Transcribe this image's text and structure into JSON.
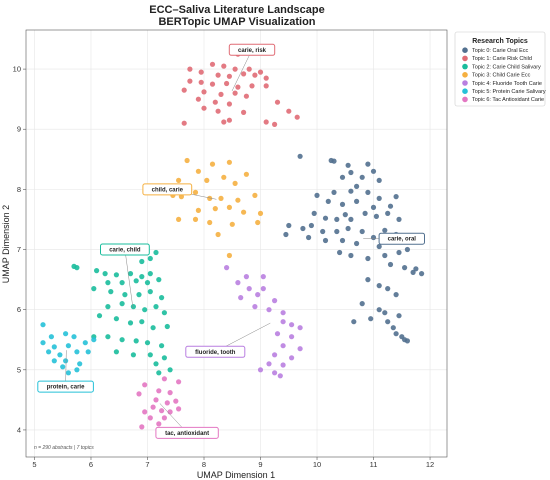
{
  "chart_data": {
    "type": "scatter",
    "title": [
      "ECC–Saliva Literature Landscape",
      "BERTopic UMAP Visualization"
    ],
    "xlabel": "UMAP Dimension 1",
    "ylabel": "UMAP Dimension 2",
    "xlim": [
      4.85,
      12.3
    ],
    "ylim": [
      3.55,
      10.65
    ],
    "xticks": [
      5,
      6,
      7,
      8,
      9,
      10,
      11,
      12
    ],
    "yticks": [
      4,
      5,
      6,
      7,
      8,
      9,
      10
    ],
    "grid": true,
    "legend": {
      "title": "Research Topics",
      "placement": "top-right"
    },
    "footnote": "n = 290 abstracts | 7 topics",
    "series": [
      {
        "name": "Topic 0: Carie Oral Ecc",
        "color": "#52708f",
        "annotation": {
          "label": "carie, oral",
          "x": 11.5,
          "y": 7.18
        },
        "points": [
          [
            9.7,
            8.55
          ],
          [
            10.3,
            8.47
          ],
          [
            10.25,
            8.48
          ],
          [
            10.55,
            8.4
          ],
          [
            10.9,
            8.42
          ],
          [
            11.0,
            8.3
          ],
          [
            10.6,
            8.28
          ],
          [
            10.8,
            8.2
          ],
          [
            11.1,
            8.15
          ],
          [
            10.45,
            8.2
          ],
          [
            10.7,
            8.05
          ],
          [
            10.0,
            7.9
          ],
          [
            10.3,
            7.95
          ],
          [
            10.6,
            7.97
          ],
          [
            10.9,
            7.95
          ],
          [
            11.1,
            7.85
          ],
          [
            11.4,
            7.88
          ],
          [
            10.2,
            7.8
          ],
          [
            10.45,
            7.75
          ],
          [
            10.7,
            7.8
          ],
          [
            11.0,
            7.7
          ],
          [
            11.3,
            7.72
          ],
          [
            9.95,
            7.6
          ],
          [
            10.15,
            7.52
          ],
          [
            10.35,
            7.5
          ],
          [
            10.5,
            7.58
          ],
          [
            10.6,
            7.5
          ],
          [
            10.85,
            7.6
          ],
          [
            11.05,
            7.55
          ],
          [
            11.25,
            7.6
          ],
          [
            11.45,
            7.5
          ],
          [
            9.5,
            7.4
          ],
          [
            9.75,
            7.35
          ],
          [
            9.9,
            7.4
          ],
          [
            10.1,
            7.3
          ],
          [
            10.35,
            7.3
          ],
          [
            10.55,
            7.35
          ],
          [
            10.8,
            7.3
          ],
          [
            11.0,
            7.2
          ],
          [
            11.2,
            7.32
          ],
          [
            11.4,
            7.25
          ],
          [
            9.45,
            7.25
          ],
          [
            9.85,
            7.2
          ],
          [
            10.15,
            7.15
          ],
          [
            10.45,
            7.15
          ],
          [
            10.7,
            7.1
          ],
          [
            11.1,
            7.05
          ],
          [
            10.4,
            6.95
          ],
          [
            10.6,
            6.9
          ],
          [
            10.9,
            6.85
          ],
          [
            11.2,
            6.9
          ],
          [
            11.45,
            6.95
          ],
          [
            11.6,
            7.0
          ],
          [
            11.3,
            6.75
          ],
          [
            11.55,
            6.7
          ],
          [
            11.75,
            6.68
          ],
          [
            11.85,
            6.6
          ],
          [
            11.7,
            6.62
          ],
          [
            10.9,
            6.5
          ],
          [
            11.1,
            6.4
          ],
          [
            11.25,
            6.35
          ],
          [
            11.4,
            6.25
          ],
          [
            10.8,
            6.1
          ],
          [
            11.1,
            6.0
          ],
          [
            11.2,
            5.95
          ],
          [
            11.45,
            5.9
          ],
          [
            10.95,
            5.85
          ],
          [
            11.25,
            5.8
          ],
          [
            11.35,
            5.7
          ],
          [
            10.65,
            5.8
          ],
          [
            11.4,
            5.6
          ],
          [
            11.5,
            5.55
          ],
          [
            11.55,
            5.5
          ],
          [
            11.6,
            5.48
          ]
        ]
      },
      {
        "name": "Topic 1: Carie Risk Child",
        "color": "#e06c75",
        "annotation": {
          "label": "carie, risk",
          "x": 8.85,
          "y": 10.32
        },
        "points": [
          [
            8.6,
            10.25
          ],
          [
            8.15,
            10.08
          ],
          [
            8.35,
            10.05
          ],
          [
            8.55,
            10.0
          ],
          [
            8.8,
            10.0
          ],
          [
            9.0,
            9.95
          ],
          [
            7.75,
            10.0
          ],
          [
            7.95,
            9.95
          ],
          [
            8.25,
            9.9
          ],
          [
            8.45,
            9.88
          ],
          [
            8.7,
            9.92
          ],
          [
            8.9,
            9.9
          ],
          [
            9.1,
            9.85
          ],
          [
            7.75,
            9.8
          ],
          [
            7.95,
            9.78
          ],
          [
            8.15,
            9.75
          ],
          [
            8.4,
            9.76
          ],
          [
            8.6,
            9.7
          ],
          [
            8.85,
            9.72
          ],
          [
            9.1,
            9.72
          ],
          [
            7.65,
            9.65
          ],
          [
            8.0,
            9.62
          ],
          [
            8.3,
            9.58
          ],
          [
            8.55,
            9.6
          ],
          [
            8.75,
            9.55
          ],
          [
            7.9,
            9.5
          ],
          [
            8.2,
            9.45
          ],
          [
            8.45,
            9.42
          ],
          [
            9.3,
            9.45
          ],
          [
            8.0,
            9.35
          ],
          [
            8.25,
            9.3
          ],
          [
            8.7,
            9.28
          ],
          [
            9.5,
            9.3
          ],
          [
            9.65,
            9.2
          ],
          [
            7.65,
            9.1
          ],
          [
            8.35,
            9.12
          ],
          [
            8.45,
            9.15
          ],
          [
            9.1,
            9.12
          ],
          [
            9.25,
            9.08
          ]
        ]
      },
      {
        "name": "Topic 2: Carie Child Salivary",
        "color": "#1abc9c",
        "annotation": {
          "label": "carie, child",
          "x": 6.6,
          "y": 7.0
        },
        "points": [
          [
            7.15,
            6.95
          ],
          [
            7.05,
            6.85
          ],
          [
            6.9,
            6.8
          ],
          [
            5.75,
            6.7
          ],
          [
            5.7,
            6.72
          ],
          [
            6.1,
            6.65
          ],
          [
            6.25,
            6.6
          ],
          [
            6.45,
            6.58
          ],
          [
            6.7,
            6.6
          ],
          [
            6.9,
            6.55
          ],
          [
            7.05,
            6.6
          ],
          [
            6.3,
            6.45
          ],
          [
            6.55,
            6.45
          ],
          [
            6.8,
            6.48
          ],
          [
            7.0,
            6.45
          ],
          [
            7.2,
            6.5
          ],
          [
            6.05,
            6.35
          ],
          [
            6.35,
            6.3
          ],
          [
            6.6,
            6.25
          ],
          [
            6.85,
            6.25
          ],
          [
            7.05,
            6.3
          ],
          [
            7.25,
            6.2
          ],
          [
            6.3,
            6.05
          ],
          [
            6.55,
            6.1
          ],
          [
            6.75,
            6.05
          ],
          [
            6.95,
            6.0
          ],
          [
            7.15,
            6.05
          ],
          [
            7.3,
            5.95
          ],
          [
            6.15,
            5.9
          ],
          [
            6.45,
            5.85
          ],
          [
            6.7,
            5.78
          ],
          [
            6.9,
            5.8
          ],
          [
            7.1,
            5.7
          ],
          [
            7.35,
            5.72
          ],
          [
            6.05,
            5.55
          ],
          [
            6.3,
            5.55
          ],
          [
            6.55,
            5.5
          ],
          [
            6.8,
            5.48
          ],
          [
            7.0,
            5.45
          ],
          [
            7.25,
            5.4
          ],
          [
            6.45,
            5.3
          ],
          [
            6.75,
            5.25
          ],
          [
            7.05,
            5.25
          ],
          [
            7.3,
            5.2
          ],
          [
            7.15,
            5.1
          ],
          [
            7.4,
            5.0
          ],
          [
            7.2,
            4.95
          ]
        ]
      },
      {
        "name": "Topic 3: Child Carie Ecc",
        "color": "#f5b041",
        "annotation": {
          "label": "child, carie",
          "x": 7.35,
          "y": 8.0
        },
        "points": [
          [
            7.7,
            8.48
          ],
          [
            8.15,
            8.42
          ],
          [
            8.45,
            8.45
          ],
          [
            7.55,
            8.15
          ],
          [
            7.9,
            8.3
          ],
          [
            8.35,
            8.2
          ],
          [
            8.75,
            8.25
          ],
          [
            8.05,
            8.15
          ],
          [
            8.55,
            8.1
          ],
          [
            7.45,
            7.9
          ],
          [
            7.6,
            7.88
          ],
          [
            7.85,
            7.95
          ],
          [
            8.1,
            7.85
          ],
          [
            8.3,
            7.85
          ],
          [
            8.6,
            7.82
          ],
          [
            8.9,
            7.9
          ],
          [
            7.9,
            7.65
          ],
          [
            8.2,
            7.68
          ],
          [
            8.45,
            7.7
          ],
          [
            8.7,
            7.62
          ],
          [
            9.0,
            7.6
          ],
          [
            7.55,
            7.5
          ],
          [
            7.85,
            7.5
          ],
          [
            8.1,
            7.45
          ],
          [
            8.5,
            7.42
          ],
          [
            8.95,
            7.45
          ],
          [
            8.25,
            7.25
          ],
          [
            8.45,
            6.9
          ]
        ]
      },
      {
        "name": "Topic 4: Fluoride Tooth Carie",
        "color": "#b97fe0",
        "annotation": {
          "label": "fluoride, tooth",
          "x": 8.2,
          "y": 5.3
        },
        "points": [
          [
            8.4,
            6.7
          ],
          [
            8.75,
            6.55
          ],
          [
            9.05,
            6.55
          ],
          [
            8.6,
            6.45
          ],
          [
            8.8,
            6.35
          ],
          [
            9.05,
            6.35
          ],
          [
            8.65,
            6.2
          ],
          [
            8.95,
            6.25
          ],
          [
            9.25,
            6.15
          ],
          [
            8.9,
            6.05
          ],
          [
            9.15,
            6.0
          ],
          [
            9.4,
            5.95
          ],
          [
            9.4,
            5.8
          ],
          [
            9.55,
            5.75
          ],
          [
            9.7,
            5.7
          ],
          [
            9.3,
            5.6
          ],
          [
            9.55,
            5.55
          ],
          [
            9.4,
            5.4
          ],
          [
            9.7,
            5.35
          ],
          [
            9.25,
            5.25
          ],
          [
            9.55,
            5.2
          ],
          [
            9.15,
            5.1
          ],
          [
            9.4,
            5.08
          ],
          [
            9.0,
            5.0
          ],
          [
            9.25,
            4.95
          ],
          [
            9.35,
            4.9
          ]
        ]
      },
      {
        "name": "Topic 5: Protein Carie Salivary",
        "color": "#26c1d8",
        "annotation": {
          "label": "protein, carie",
          "x": 5.55,
          "y": 4.72
        },
        "points": [
          [
            5.15,
            5.75
          ],
          [
            5.3,
            5.55
          ],
          [
            5.55,
            5.6
          ],
          [
            5.7,
            5.55
          ],
          [
            5.15,
            5.45
          ],
          [
            5.35,
            5.38
          ],
          [
            5.6,
            5.4
          ],
          [
            5.9,
            5.45
          ],
          [
            6.05,
            5.5
          ],
          [
            5.25,
            5.3
          ],
          [
            5.45,
            5.25
          ],
          [
            5.75,
            5.3
          ],
          [
            5.95,
            5.3
          ],
          [
            5.35,
            5.15
          ],
          [
            5.55,
            5.15
          ],
          [
            5.8,
            5.1
          ],
          [
            5.5,
            5.05
          ],
          [
            5.75,
            5.0
          ],
          [
            5.6,
            4.95
          ]
        ]
      },
      {
        "name": "Topic 6: Tac Antioxidant Carie",
        "color": "#e377c2",
        "annotation": {
          "label": "tac, antioxidant",
          "x": 7.7,
          "y": 3.95
        },
        "points": [
          [
            7.3,
            4.85
          ],
          [
            7.55,
            4.8
          ],
          [
            6.95,
            4.75
          ],
          [
            7.2,
            4.65
          ],
          [
            7.4,
            4.62
          ],
          [
            6.85,
            4.6
          ],
          [
            7.15,
            4.5
          ],
          [
            7.35,
            4.45
          ],
          [
            7.5,
            4.48
          ],
          [
            7.1,
            4.38
          ],
          [
            7.25,
            4.32
          ],
          [
            6.95,
            4.3
          ],
          [
            7.4,
            4.3
          ],
          [
            7.55,
            4.35
          ],
          [
            7.05,
            4.2
          ],
          [
            7.3,
            4.2
          ],
          [
            7.2,
            4.1
          ],
          [
            6.9,
            4.05
          ]
        ]
      }
    ]
  }
}
